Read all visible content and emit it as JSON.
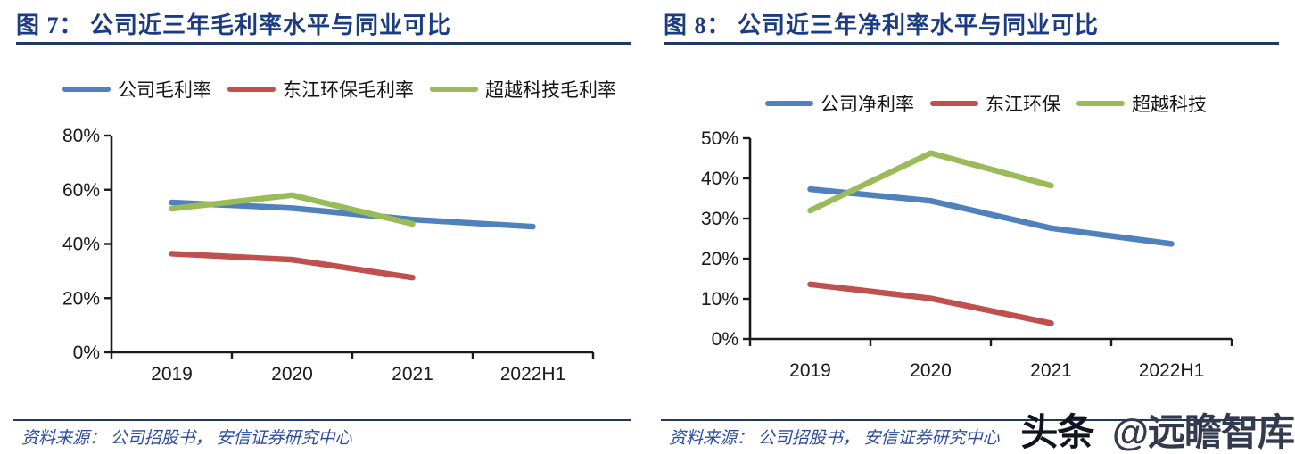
{
  "panels": [
    {
      "title": "图 7： 公司近三年毛利率水平与同业可比",
      "source": "资料来源： 公司招股书， 安信证券研究中心"
    },
    {
      "title": "图 8： 公司近三年净利率水平与同业可比",
      "source": "资料来源： 公司招股书， 安信证券研究中心"
    }
  ],
  "watermark": {
    "brand": "头条",
    "handle": "@远瞻智库"
  },
  "colors": {
    "title_navy": "#1B3B82",
    "rule_navy": "#1F3864",
    "source_blue": "#2B4BA0",
    "axis": "#1A1A1A",
    "series_blue": "#4F81BD",
    "series_red": "#C0504D",
    "series_green": "#9BBB59"
  },
  "chart_data": [
    {
      "id": "figure7",
      "type": "line",
      "title": "图 7： 公司近三年毛利率水平与同业可比",
      "categories": [
        "2019",
        "2020",
        "2021",
        "2022H1"
      ],
      "series": [
        {
          "name": "公司毛利率",
          "color": "#4F81BD",
          "values": [
            55.3,
            53.2,
            49.0,
            46.4
          ]
        },
        {
          "name": "东江环保毛利率",
          "color": "#C0504D",
          "values": [
            36.4,
            34.2,
            27.6
          ]
        },
        {
          "name": "超越科技毛利率",
          "color": "#9BBB59",
          "values": [
            53.0,
            58.0,
            47.4
          ]
        }
      ],
      "xlabel": "",
      "ylabel": "",
      "ylim": [
        0,
        80
      ],
      "ytick_step": 20,
      "ytick_suffix": "%",
      "grid": false,
      "legend_position": "top"
    },
    {
      "id": "figure8",
      "type": "line",
      "title": "图 8： 公司近三年净利率水平与同业可比",
      "categories": [
        "2019",
        "2020",
        "2021",
        "2022H1"
      ],
      "series": [
        {
          "name": "公司净利率",
          "color": "#4F81BD",
          "values": [
            37.3,
            34.4,
            27.6,
            23.7
          ]
        },
        {
          "name": "东江环保",
          "color": "#C0504D",
          "values": [
            13.6,
            10.1,
            3.9
          ]
        },
        {
          "name": "超越科技",
          "color": "#9BBB59",
          "values": [
            32.0,
            46.3,
            38.2
          ]
        }
      ],
      "xlabel": "",
      "ylabel": "",
      "ylim": [
        0,
        50
      ],
      "ytick_step": 10,
      "ytick_suffix": "%",
      "grid": false,
      "legend_position": "top"
    }
  ]
}
